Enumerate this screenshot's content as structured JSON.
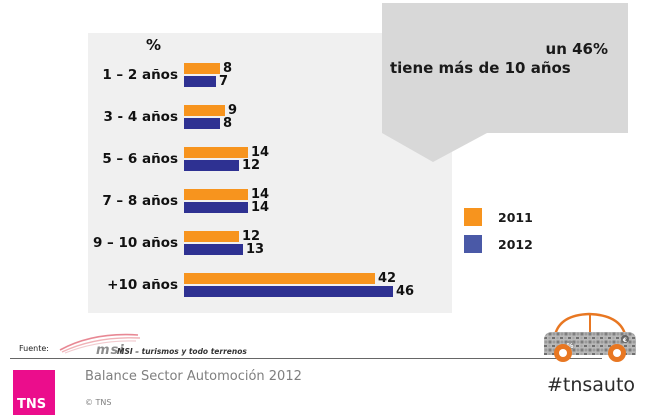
{
  "chart_data": {
    "type": "bar",
    "orientation": "horizontal",
    "title": "",
    "unit_label": "%",
    "categories": [
      "1 – 2 años",
      "3 - 4 años",
      "5 – 6 años",
      "7 – 8 años",
      "9 – 10 años",
      "+10 años"
    ],
    "series": [
      {
        "name": "2011",
        "color": "#F7941E",
        "legend_color": "#F7941E",
        "values": [
          8,
          9,
          14,
          14,
          12,
          42
        ]
      },
      {
        "name": "2012",
        "color": "#2E3192",
        "legend_color": "#4A59A7",
        "values": [
          7,
          8,
          12,
          14,
          13,
          46
        ]
      }
    ],
    "xlim": [
      0,
      50
    ],
    "grid": false,
    "legend_position": "right",
    "plot_background": "#F0F0F0"
  },
  "callout": {
    "line1": "un 46%",
    "line2": "tiene más de 10 años",
    "background": "#D8D8D8"
  },
  "footer": {
    "source_label": "Fuente:",
    "source_logo_text": "msi",
    "source_text": "MSI – turismos y todo terrenos"
  },
  "branding": {
    "logo_text": "TNS",
    "brand_color": "#EB0D8C",
    "deck_title": "Balance Sector Automoción 2012",
    "copyright": "© TNS",
    "hashtag": "#tnsauto"
  },
  "icons": {
    "car_icon": "mosaic-car-icon",
    "car_wheel_color": "#E87722",
    "car_body_color": "#8a8a8a"
  }
}
